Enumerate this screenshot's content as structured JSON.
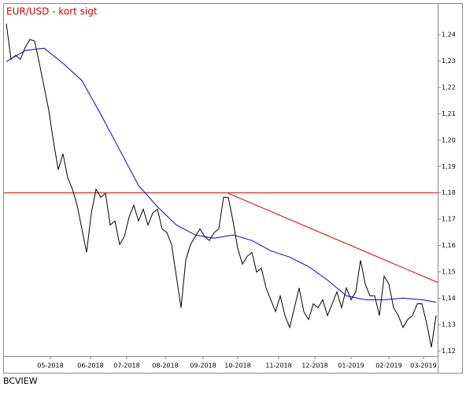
{
  "chart_data": {
    "type": "line",
    "title": "EUR/USD - kort sigt",
    "footer": "BCVIEW",
    "xlim": [
      0,
      91.33
    ],
    "ylim": [
      1.118,
      1.2466
    ],
    "xticks": [
      {
        "value": 9.33,
        "label": "05-2018"
      },
      {
        "value": 17.83,
        "label": "06-2018"
      },
      {
        "value": 25.5,
        "label": "07-2018"
      },
      {
        "value": 33.67,
        "label": "08-2018"
      },
      {
        "value": 41.67,
        "label": "09-2018"
      },
      {
        "value": 49,
        "label": "10-2018"
      },
      {
        "value": 57.67,
        "label": "11-2018"
      },
      {
        "value": 65.33,
        "label": "12-2018"
      },
      {
        "value": 73,
        "label": "01-2019"
      },
      {
        "value": 81,
        "label": "02-2019"
      },
      {
        "value": 88.33,
        "label": "03-2019"
      }
    ],
    "yticks": [
      {
        "value": 1.12,
        "label": "1,12"
      },
      {
        "value": 1.13,
        "label": "1,13"
      },
      {
        "value": 1.14,
        "label": "1,14"
      },
      {
        "value": 1.15,
        "label": "1,15"
      },
      {
        "value": 1.16,
        "label": "1,16"
      },
      {
        "value": 1.17,
        "label": "1,17"
      },
      {
        "value": 1.18,
        "label": "1,18"
      },
      {
        "value": 1.19,
        "label": "1,19"
      },
      {
        "value": 1.2,
        "label": "1,20"
      },
      {
        "value": 1.21,
        "label": "1,21"
      },
      {
        "value": 1.22,
        "label": "1,22"
      },
      {
        "value": 1.23,
        "label": "1,23"
      },
      {
        "value": 1.24,
        "label": "1,24"
      }
    ],
    "series": [
      {
        "color": "#000000",
        "values": [
          1.2442,
          1.2307,
          1.2322,
          1.2307,
          1.2352,
          1.2382,
          1.2376,
          1.2292,
          1.2202,
          1.2113,
          1.1993,
          1.1888,
          1.1948,
          1.1858,
          1.1813,
          1.1753,
          1.1663,
          1.1574,
          1.1723,
          1.1813,
          1.1783,
          1.1798,
          1.1678,
          1.1693,
          1.1604,
          1.1634,
          1.1708,
          1.1753,
          1.1693,
          1.1738,
          1.1678,
          1.1723,
          1.1738,
          1.1663,
          1.1649,
          1.1604,
          1.1484,
          1.1364,
          1.1544,
          1.1604,
          1.1634,
          1.1663,
          1.1634,
          1.1619,
          1.1649,
          1.1663,
          1.1783,
          1.1783,
          1.1693,
          1.1589,
          1.1529,
          1.1559,
          1.1574,
          1.1499,
          1.1514,
          1.1439,
          1.1394,
          1.1349,
          1.1409,
          1.1334,
          1.1289,
          1.1364,
          1.1439,
          1.1349,
          1.1319,
          1.1379,
          1.1364,
          1.1394,
          1.1334,
          1.1379,
          1.1424,
          1.1364,
          1.1439,
          1.1394,
          1.1424,
          1.1544,
          1.1454,
          1.1409,
          1.1409,
          1.1334,
          1.1484,
          1.1454,
          1.1364,
          1.1334,
          1.1289,
          1.1319,
          1.1334,
          1.1379,
          1.1379,
          1.1304,
          1.1214,
          1.1334
        ]
      },
      {
        "color": "#0000cc",
        "x": [
          0,
          4,
          8,
          12,
          16,
          20,
          24,
          28,
          32,
          36,
          40,
          44,
          48,
          52,
          56,
          60,
          64,
          68,
          72,
          76,
          80,
          84,
          88,
          91
        ],
        "values": [
          1.2298,
          1.234,
          1.2349,
          1.2292,
          1.2226,
          1.2098,
          1.1963,
          1.1828,
          1.1747,
          1.1678,
          1.164,
          1.1628,
          1.164,
          1.1619,
          1.158,
          1.1556,
          1.152,
          1.1469,
          1.1409,
          1.1394,
          1.1394,
          1.14,
          1.1394,
          1.1385
        ]
      }
    ],
    "hline": {
      "value": 1.18,
      "color": "#dd0000"
    },
    "trendline": {
      "x": [
        47,
        91.33
      ],
      "y": [
        1.1798,
        1.146
      ],
      "color": "#dd0000"
    }
  }
}
